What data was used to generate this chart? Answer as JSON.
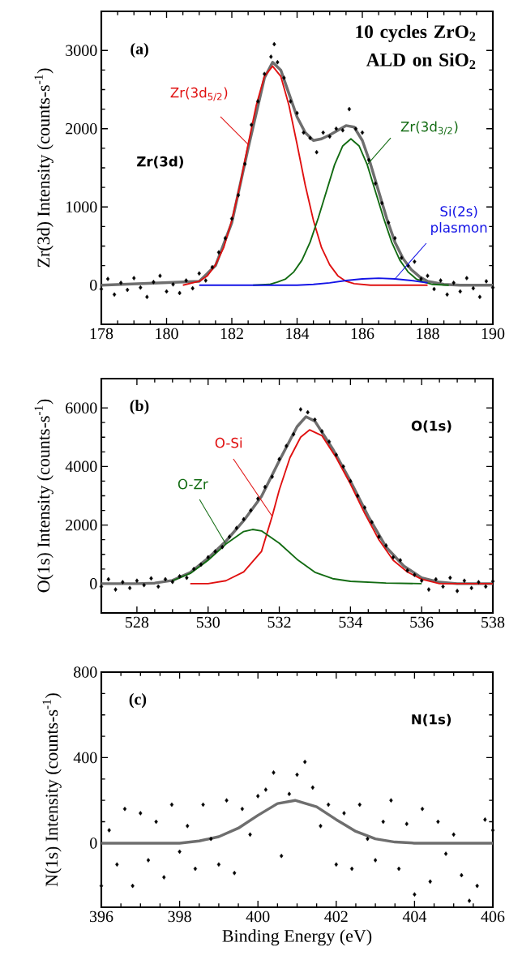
{
  "chart_data": [
    {
      "type": "scatter",
      "title": "10 cycles ZrO$_{2}$ ALD on SiO$_{2}$",
      "ylabel": "Zr(3d) Intensity (counts-s$^{-1}$)",
      "annotations": [
        "(a)",
        "Zr(3d)"
      ],
      "xlim": [
        178,
        190
      ],
      "ylim": [
        -500,
        3500
      ],
      "xticks": [
        178,
        180,
        182,
        184,
        186,
        188,
        190
      ],
      "yticks": [
        0,
        1000,
        2000,
        3000
      ],
      "series": [
        {
          "type": "scatter",
          "marker": "diamond",
          "color": "#000000",
          "x": [
            178.0,
            178.2,
            178.4,
            178.6,
            178.8,
            179.0,
            179.2,
            179.4,
            179.6,
            179.8,
            180.0,
            180.2,
            180.4,
            180.6,
            180.8,
            181.0,
            181.2,
            181.4,
            181.6,
            181.8,
            182.0,
            182.2,
            182.4,
            182.6,
            182.8,
            183.0,
            183.2,
            183.3,
            183.4,
            183.6,
            183.8,
            184.0,
            184.2,
            184.4,
            184.6,
            184.8,
            185.0,
            185.2,
            185.4,
            185.6,
            185.8,
            186.0,
            186.2,
            186.4,
            186.6,
            186.8,
            187.0,
            187.2,
            187.4,
            187.6,
            187.8,
            188.0,
            188.2,
            188.4,
            188.6,
            188.8,
            189.0,
            189.2,
            189.4,
            189.6,
            189.8,
            190.0
          ],
          "values": [
            -50,
            80,
            -120,
            30,
            -60,
            90,
            -30,
            -150,
            40,
            120,
            -80,
            10,
            -100,
            60,
            -40,
            150,
            60,
            230,
            420,
            600,
            850,
            1150,
            1550,
            2050,
            2350,
            2700,
            2920,
            3080,
            2850,
            2650,
            2350,
            2200,
            1950,
            1880,
            1700,
            1950,
            1900,
            2000,
            1980,
            2250,
            2000,
            1950,
            1600,
            1300,
            1050,
            800,
            600,
            350,
            250,
            300,
            80,
            120,
            -50,
            60,
            -120,
            30,
            -80,
            90,
            -40,
            -150,
            50,
            -30
          ]
        },
        {
          "type": "line",
          "color": "#6e6e6e",
          "x": [
            178,
            181,
            181.5,
            182,
            182.5,
            183,
            183.25,
            183.5,
            183.75,
            184,
            184.25,
            184.5,
            184.75,
            185,
            185.25,
            185.5,
            185.75,
            186,
            186.25,
            186.5,
            186.75,
            187,
            187.25,
            187.5,
            187.75,
            188,
            188.5,
            189,
            190
          ],
          "values": [
            0,
            50,
            250,
            800,
            1750,
            2650,
            2850,
            2750,
            2450,
            2150,
            1950,
            1850,
            1870,
            1920,
            1980,
            2040,
            2020,
            1850,
            1550,
            1200,
            850,
            550,
            340,
            200,
            110,
            50,
            10,
            0,
            0
          ]
        },
        {
          "type": "line",
          "name": "Zr(3d$_{5/2}$)",
          "color": "#e01010",
          "x": [
            180.5,
            181,
            181.25,
            181.5,
            181.75,
            182,
            182.25,
            182.5,
            182.75,
            183,
            183.25,
            183.5,
            183.75,
            184,
            184.25,
            184.5,
            184.75,
            185,
            185.25,
            185.5,
            185.75,
            186.25,
            188
          ],
          "values": [
            0,
            50,
            120,
            260,
            480,
            830,
            1280,
            1800,
            2300,
            2670,
            2800,
            2670,
            2300,
            1800,
            1280,
            830,
            480,
            260,
            120,
            50,
            20,
            0,
            0
          ]
        },
        {
          "type": "line",
          "name": "Zr(3d$_{3/2}$)",
          "color": "#126b12",
          "x": [
            182.65,
            183.15,
            183.4,
            183.65,
            183.9,
            184.15,
            184.4,
            184.65,
            184.9,
            185.15,
            185.4,
            185.65,
            185.9,
            186.15,
            186.4,
            186.65,
            186.9,
            187.15,
            187.4,
            187.65,
            187.9,
            188.15,
            188.65
          ],
          "values": [
            0,
            10,
            40,
            80,
            170,
            320,
            550,
            860,
            1200,
            1540,
            1780,
            1870,
            1780,
            1540,
            1200,
            860,
            550,
            320,
            170,
            80,
            40,
            10,
            0
          ]
        },
        {
          "type": "line",
          "name": "Si(2s) plasmon",
          "color": "#1414e6",
          "x": [
            181,
            182.5,
            183.5,
            184,
            184.5,
            185,
            185.5,
            186,
            186.5,
            187,
            187.5,
            188
          ],
          "values": [
            0,
            0,
            0,
            0,
            10,
            30,
            60,
            80,
            90,
            80,
            60,
            30
          ]
        }
      ]
    },
    {
      "type": "scatter",
      "ylabel": "O(1s) Intensity (counts-s$^{-1}$)",
      "annotations": [
        "(b)",
        "O(1s)"
      ],
      "xlim": [
        527,
        538
      ],
      "ylim": [
        -1000,
        7000
      ],
      "xticks": [
        528,
        530,
        532,
        534,
        536,
        538
      ],
      "yticks": [
        0,
        2000,
        4000,
        6000
      ],
      "series": [
        {
          "type": "scatter",
          "marker": "diamond",
          "color": "#000000",
          "x": [
            527.0,
            527.2,
            527.4,
            527.6,
            527.8,
            528.0,
            528.2,
            528.4,
            528.6,
            528.8,
            529.0,
            529.2,
            529.4,
            529.6,
            529.8,
            530.0,
            530.2,
            530.4,
            530.6,
            530.8,
            531.0,
            531.2,
            531.4,
            531.6,
            531.8,
            532.0,
            532.2,
            532.4,
            532.6,
            532.8,
            533.0,
            533.2,
            533.4,
            533.6,
            533.8,
            534.0,
            534.2,
            534.4,
            534.6,
            534.8,
            535.0,
            535.2,
            535.4,
            535.6,
            535.8,
            536.0,
            536.2,
            536.4,
            536.6,
            536.8,
            537.0,
            537.2,
            537.4,
            537.6,
            537.8,
            538.0
          ],
          "values": [
            -100,
            150,
            -200,
            50,
            -150,
            100,
            -50,
            180,
            -100,
            150,
            60,
            250,
            200,
            500,
            650,
            900,
            1100,
            1250,
            1600,
            1900,
            2200,
            2500,
            2900,
            3300,
            3650,
            4250,
            4700,
            5100,
            5950,
            5850,
            5600,
            5200,
            4850,
            4400,
            4000,
            3500,
            3000,
            2600,
            2100,
            1600,
            1300,
            900,
            800,
            450,
            300,
            100,
            -200,
            150,
            -100,
            200,
            -250,
            100,
            -150,
            50,
            -100,
            80
          ]
        },
        {
          "type": "line",
          "color": "#6e6e6e",
          "x": [
            527,
            528,
            528.5,
            529,
            529.5,
            530,
            530.5,
            531,
            531.5,
            532,
            532.5,
            532.75,
            533,
            533.5,
            534,
            534.5,
            535,
            535.5,
            536,
            536.5,
            537,
            538
          ],
          "values": [
            0,
            0,
            20,
            110,
            380,
            870,
            1450,
            2150,
            2980,
            4200,
            5360,
            5700,
            5550,
            4600,
            3500,
            2300,
            1250,
            600,
            200,
            50,
            0,
            0
          ]
        },
        {
          "type": "line",
          "name": "O-Si",
          "color": "#e01010",
          "x": [
            529.5,
            530,
            530.5,
            531,
            531.5,
            531.8,
            532,
            532.3,
            532.6,
            532.85,
            533.2,
            533.6,
            534,
            534.4,
            534.8,
            535.2,
            535.6,
            536,
            536.5,
            537,
            538
          ],
          "values": [
            0,
            0,
            100,
            400,
            1100,
            2300,
            3200,
            4300,
            5000,
            5250,
            5050,
            4300,
            3400,
            2400,
            1500,
            800,
            400,
            150,
            0,
            0,
            0
          ]
        },
        {
          "type": "line",
          "name": "O-Zr",
          "color": "#126b12",
          "x": [
            529,
            529.5,
            530,
            530.5,
            531,
            531.25,
            531.5,
            532,
            532.5,
            533,
            533.5,
            534,
            535,
            536
          ],
          "values": [
            100,
            350,
            800,
            1350,
            1780,
            1850,
            1800,
            1380,
            830,
            390,
            170,
            80,
            20,
            0
          ]
        }
      ]
    },
    {
      "type": "scatter",
      "xlabel": "Binding Energy (eV)",
      "ylabel": "N(1s) Intensity (counts-s$^{-1}$)",
      "annotations": [
        "(c)",
        "N(1s)"
      ],
      "xlim": [
        396,
        406
      ],
      "ylim": [
        -300,
        800
      ],
      "xticks": [
        396,
        398,
        400,
        402,
        404,
        406
      ],
      "yticks": [
        0,
        400,
        800
      ],
      "series": [
        {
          "type": "scatter",
          "marker": "diamond",
          "color": "#000000",
          "x": [
            396.0,
            396.2,
            396.4,
            396.6,
            396.8,
            397.0,
            397.2,
            397.4,
            397.6,
            397.8,
            398.0,
            398.2,
            398.4,
            398.6,
            398.8,
            399.0,
            399.2,
            399.4,
            399.6,
            399.8,
            400.0,
            400.2,
            400.4,
            400.6,
            400.8,
            401.0,
            401.2,
            401.4,
            401.6,
            401.8,
            402.0,
            402.2,
            402.4,
            402.6,
            402.8,
            403.0,
            403.2,
            403.4,
            403.6,
            403.8,
            404.0,
            404.2,
            404.4,
            404.6,
            404.8,
            405.0,
            405.2,
            405.4,
            405.6,
            405.8,
            406.0
          ],
          "values": [
            -200,
            60,
            -100,
            160,
            -200,
            140,
            -80,
            100,
            -160,
            180,
            -40,
            80,
            -120,
            180,
            20,
            -100,
            200,
            -140,
            160,
            40,
            220,
            250,
            330,
            -60,
            230,
            320,
            380,
            260,
            80,
            180,
            -100,
            140,
            -120,
            180,
            20,
            -80,
            100,
            200,
            -120,
            90,
            -240,
            160,
            -180,
            100,
            -50,
            40,
            -150,
            -270,
            -200,
            110,
            60
          ]
        },
        {
          "type": "line",
          "color": "#6e6e6e",
          "x": [
            396,
            398,
            398.5,
            399,
            399.5,
            400,
            400.5,
            400.95,
            401.5,
            402,
            402.5,
            403,
            403.5,
            404,
            406
          ],
          "values": [
            0,
            0,
            10,
            30,
            70,
            130,
            185,
            200,
            170,
            110,
            55,
            20,
            5,
            0,
            0
          ]
        }
      ]
    }
  ]
}
